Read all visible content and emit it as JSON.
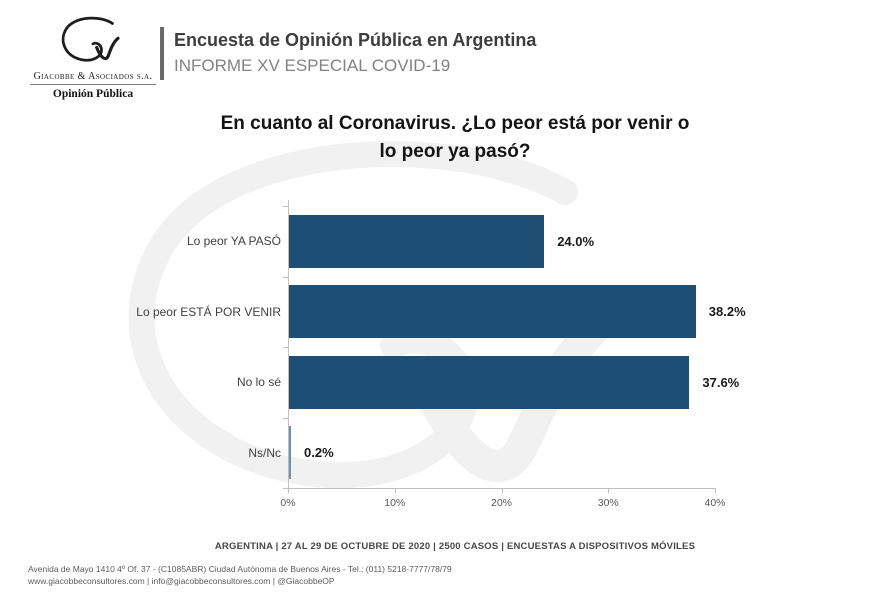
{
  "brand": {
    "logo_name": "Giacobbe & Asociados s.a.",
    "logo_subtitle": "Opinión Pública"
  },
  "header": {
    "title": "Encuesta de Opinión Pública en Argentina",
    "subtitle": "INFORME XV ESPECIAL COVID-19"
  },
  "chart_data": {
    "type": "bar",
    "orientation": "horizontal",
    "title": "En cuanto al Coronavirus. ¿Lo peor está por venir o lo peor ya pasó?",
    "title_lines": [
      "En cuanto al Coronavirus. ¿Lo peor está por venir o",
      "lo peor ya pasó?"
    ],
    "categories": [
      "Lo peor YA PASÓ",
      "Lo peor ESTÁ POR VENIR",
      "No lo sé",
      "Ns/Nc"
    ],
    "values": [
      24.0,
      38.2,
      37.6,
      0.2
    ],
    "value_labels": [
      "24.0%",
      "38.2%",
      "37.6%",
      "0.2%"
    ],
    "x_ticks": [
      "0%",
      "10%",
      "20%",
      "30%",
      "40%"
    ],
    "xlim": [
      0,
      40
    ],
    "xlabel": "",
    "ylabel": "",
    "grid": false,
    "legend": false,
    "bar_color": "#1f4e74",
    "tiny_bar_color": "#6d92b0",
    "axis_color": "#bfbfbf"
  },
  "footer": {
    "source_line": "ARGENTINA | 27 AL 29 DE OCTUBRE DE 2020 | 2500 CASOS | ENCUESTAS A DISPOSITIVOS MÓVILES",
    "address_line": "Avenida de Mayo 1410 4º Of. 37 - (C1085ABR) Ciudad Autónoma de Buenos Aires - Tel.: (011) 5218-7777/78/79",
    "contact_line": "www.giacobbeconsultores.com | info@giacobbeconsultores.com | @GiacobbeOP"
  }
}
